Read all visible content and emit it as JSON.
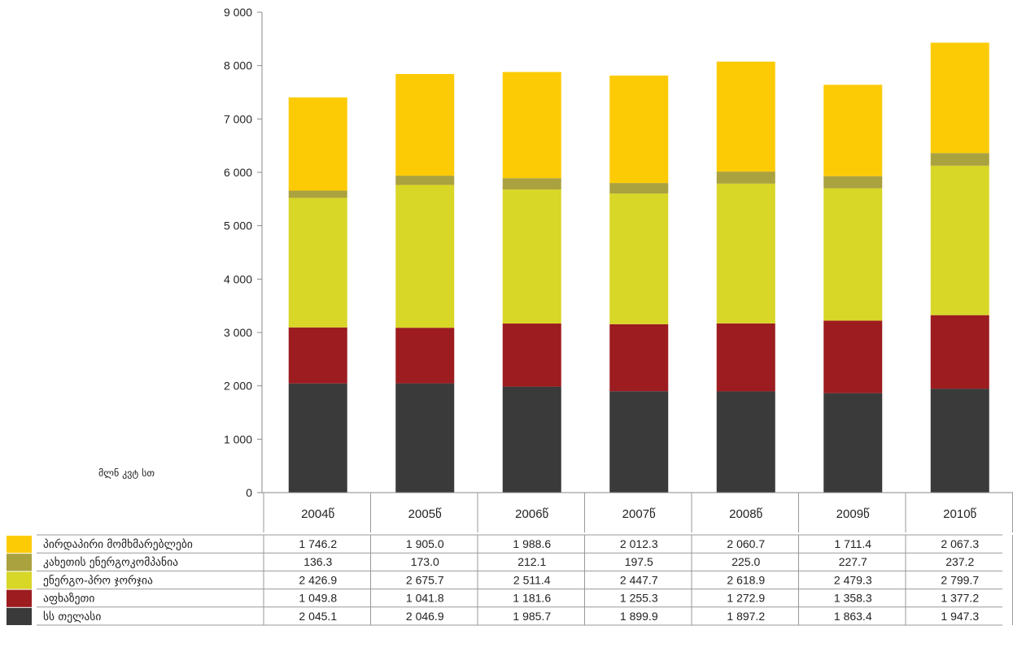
{
  "chart_data": {
    "type": "bar",
    "stacked": true,
    "ylabel": "მლნ კვტ სთ",
    "ylim": [
      0,
      9000
    ],
    "yticks": [
      0,
      1000,
      2000,
      3000,
      4000,
      5000,
      6000,
      7000,
      8000,
      9000
    ],
    "ytick_labels": [
      "0",
      "1 000",
      "2 000",
      "3 000",
      "4 000",
      "5 000",
      "6 000",
      "7 000",
      "8 000",
      "9 000"
    ],
    "grid": false,
    "legend": "bottom-left (data table)",
    "categories": [
      "2004წ",
      "2005წ",
      "2006წ",
      "2007წ",
      "2008წ",
      "2009წ",
      "2010წ"
    ],
    "series": [
      {
        "name": "სს თელასი",
        "color": "#3a3a3a",
        "values": [
          2045.1,
          2046.9,
          1985.7,
          1899.9,
          1897.2,
          1863.4,
          1947.3
        ],
        "labels": [
          "2 045.1",
          "2 046.9",
          "1 985.7",
          "1 899.9",
          "1 897.2",
          "1 863.4",
          "1 947.3"
        ]
      },
      {
        "name": "აფხაზეთი",
        "color": "#9c1c20",
        "values": [
          1049.8,
          1041.8,
          1181.6,
          1255.3,
          1272.9,
          1358.3,
          1377.2
        ],
        "labels": [
          "1 049.8",
          "1 041.8",
          "1 181.6",
          "1 255.3",
          "1 272.9",
          "1 358.3",
          "1 377.2"
        ]
      },
      {
        "name": "ენერგო-პრო ჯორჯია",
        "color": "#d8d627",
        "values": [
          2426.9,
          2675.7,
          2511.4,
          2447.7,
          2618.9,
          2479.3,
          2799.7
        ],
        "labels": [
          "2 426.9",
          "2 675.7",
          "2 511.4",
          "2 447.7",
          "2 618.9",
          "2 479.3",
          "2 799.7"
        ]
      },
      {
        "name": "კახეთის ენერგოკომპანია",
        "color": "#aaa23f",
        "values": [
          136.3,
          173.0,
          212.1,
          197.5,
          225.0,
          227.7,
          237.2
        ],
        "labels": [
          "136.3",
          "173.0",
          "212.1",
          "197.5",
          "225.0",
          "227.7",
          "237.2"
        ]
      },
      {
        "name": "პირდაპირი მომხმარებლები",
        "color": "#fdcb06",
        "values": [
          1746.2,
          1905.0,
          1988.6,
          2012.3,
          2060.7,
          1711.4,
          2067.3
        ],
        "labels": [
          "1 746.2",
          "1 905.0",
          "1 988.6",
          "2 012.3",
          "2 060.7",
          "1 711.4",
          "2 067.3"
        ]
      }
    ]
  }
}
